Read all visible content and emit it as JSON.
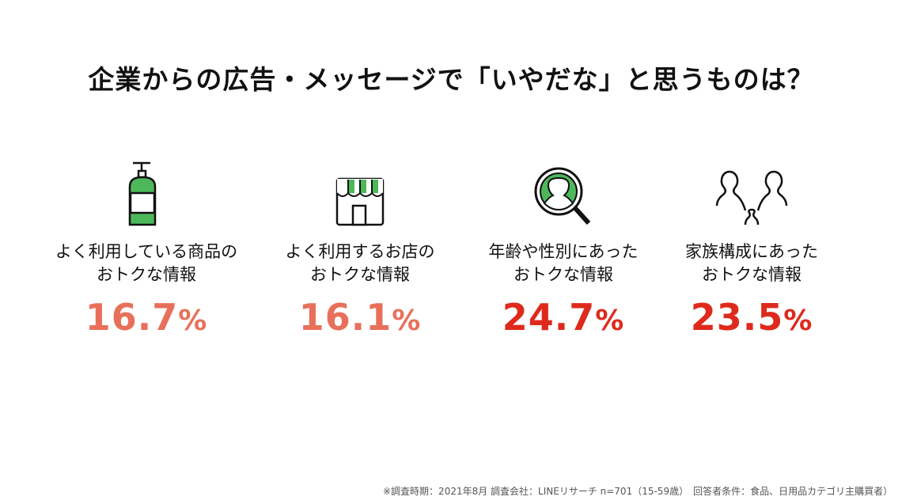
{
  "title": "企業からの広告・メッセージで「いやだな」と思うものは？",
  "colors": {
    "accent_green": "#4cb85a",
    "pct_light": "#e8705a",
    "pct_strong": "#de2a1c"
  },
  "items": [
    {
      "icon": "pump-bottle-icon",
      "line1": "よく利用している商品の",
      "line2": "おトクな情報",
      "value": "16.7",
      "unit": "%"
    },
    {
      "icon": "storefront-icon",
      "line1": "よく利用するお店の",
      "line2": "おトクな情報",
      "value": "16.1",
      "unit": "%"
    },
    {
      "icon": "magnifier-person-icon",
      "line1": "年齢や性別にあった",
      "line2": "おトクな情報",
      "value": "24.7",
      "unit": "%"
    },
    {
      "icon": "family-icon",
      "line1": "家族構成にあった",
      "line2": "おトクな情報",
      "value": "23.5",
      "unit": "%"
    }
  ],
  "footnote": "※調査時期：2021年8月 調査会社：LINEリサーチ n=701（15-59歳）　回答者条件：食品、日用品カテゴリ主購買者）"
}
